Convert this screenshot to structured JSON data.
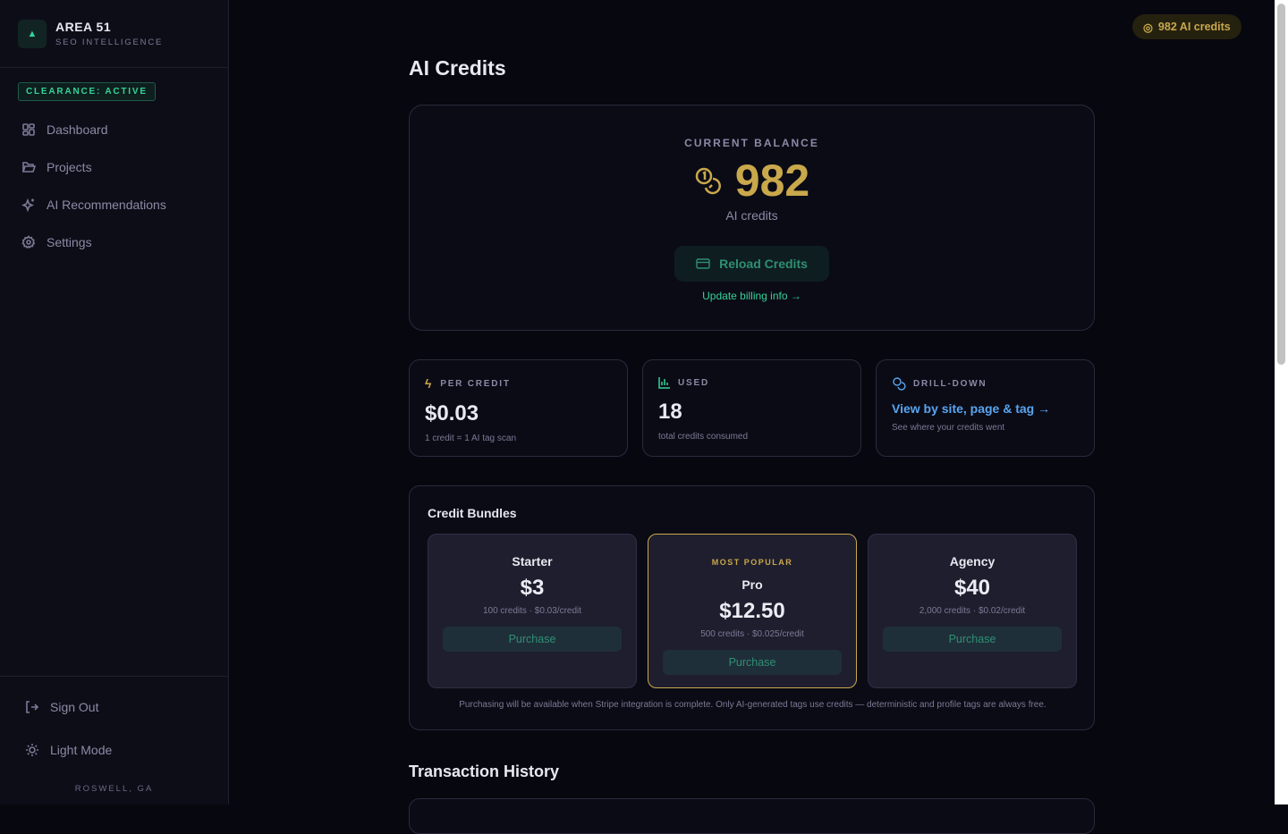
{
  "brand": {
    "name": "AREA 51",
    "subtitle": "SEO INTELLIGENCE",
    "clearance": "CLEARANCE: ACTIVE"
  },
  "sidebar": {
    "items": [
      {
        "label": "Dashboard",
        "icon": "dashboard-icon"
      },
      {
        "label": "Projects",
        "icon": "folder-icon"
      },
      {
        "label": "AI Recommendations",
        "icon": "sparkles-icon"
      },
      {
        "label": "Settings",
        "icon": "gear-icon"
      }
    ],
    "sign_out": "Sign Out",
    "light_mode": "Light Mode",
    "location": "ROSWELL, GA"
  },
  "header": {
    "credits_badge": "982 AI credits"
  },
  "page": {
    "title": "AI Credits"
  },
  "balance": {
    "label": "CURRENT BALANCE",
    "value": "982",
    "unit": "AI credits",
    "reload": "Reload Credits",
    "billing": "Update billing info →"
  },
  "stats": [
    {
      "label": "PER CREDIT",
      "value": "$0.03",
      "sub": "1 credit = 1 AI tag scan"
    },
    {
      "label": "USED",
      "value": "18",
      "sub": "total credits consumed"
    },
    {
      "label": "DRILL-DOWN",
      "link": "View by site, page & tag →",
      "sub": "See where your credits went"
    }
  ],
  "bundles": {
    "title": "Credit Bundles",
    "items": [
      {
        "name": "Starter",
        "price": "$3",
        "detail": "100 credits · $0.03/credit",
        "button": "Purchase"
      },
      {
        "tag": "MOST POPULAR",
        "name": "Pro",
        "price": "$12.50",
        "detail": "500 credits · $0.025/credit",
        "button": "Purchase"
      },
      {
        "name": "Agency",
        "price": "$40",
        "detail": "2,000 credits · $0.02/credit",
        "button": "Purchase"
      }
    ],
    "note": "Purchasing will be available when Stripe integration is complete. Only AI-generated tags use credits — deterministic and profile tags are always free."
  },
  "history": {
    "title": "Transaction History"
  },
  "colors": {
    "gold": "#c9a84c",
    "accent": "#34d399",
    "link": "#5aa5f0"
  }
}
